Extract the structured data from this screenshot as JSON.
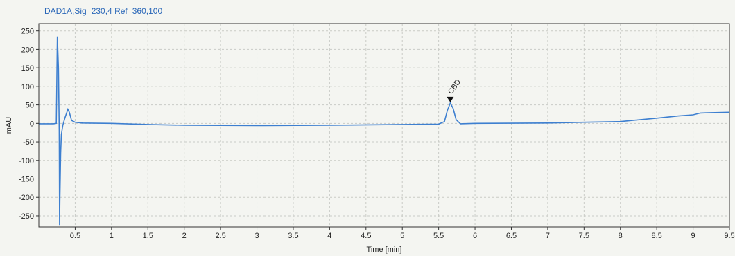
{
  "chart_data": {
    "type": "line",
    "title": "DAD1A,Sig=230,4  Ref=360,100",
    "xlabel": "Time [min]",
    "ylabel": "mAU",
    "xlim": [
      0,
      9.5
    ],
    "ylim": [
      -280,
      270
    ],
    "x_ticks": [
      0.5,
      1,
      1.5,
      2,
      2.5,
      3,
      3.5,
      4,
      4.5,
      5,
      5.5,
      6,
      6.5,
      7,
      7.5,
      8,
      8.5,
      9,
      9.5
    ],
    "x_tick_labels": [
      "0.5",
      "1",
      "1.5",
      "2",
      "2.5",
      "3",
      "3.5",
      "4",
      "4.5",
      "5",
      "5.5",
      "6",
      "6.5",
      "7",
      "7.5",
      "8",
      "8.5",
      "9",
      "9.5"
    ],
    "y_ticks": [
      250,
      200,
      150,
      100,
      50,
      0,
      -50,
      -100,
      -150,
      -200,
      -250
    ],
    "y_tick_labels": [
      "250",
      "200",
      "150",
      "100",
      "50",
      "0",
      "-50",
      "-100",
      "-150",
      "-200",
      "-250"
    ],
    "grid": true,
    "series": [
      {
        "color": "#3d7fd0",
        "x": [
          0,
          0.2,
          0.24,
          0.255,
          0.27,
          0.28,
          0.285,
          0.29,
          0.3,
          0.31,
          0.33,
          0.36,
          0.4,
          0.42,
          0.45,
          0.5,
          0.6,
          1.0,
          1.5,
          2.0,
          3.0,
          4.0,
          5.0,
          5.5,
          5.58,
          5.62,
          5.66,
          5.7,
          5.74,
          5.8,
          6.0,
          7.0,
          7.5,
          8.0,
          8.5,
          8.8,
          9.0,
          9.1,
          9.3,
          9.5
        ],
        "y": [
          -1,
          -1,
          0,
          235,
          150,
          -20,
          -275,
          -200,
          -80,
          -30,
          -5,
          15,
          38,
          30,
          8,
          3,
          1,
          0,
          -3,
          -5,
          -6,
          -5,
          -3,
          -2,
          5,
          35,
          55,
          40,
          10,
          -1,
          0,
          1,
          3,
          5,
          14,
          20,
          23,
          28,
          29,
          30
        ]
      }
    ],
    "annotations": [
      {
        "label": "CBD",
        "x": 5.66,
        "y": 55
      }
    ]
  }
}
